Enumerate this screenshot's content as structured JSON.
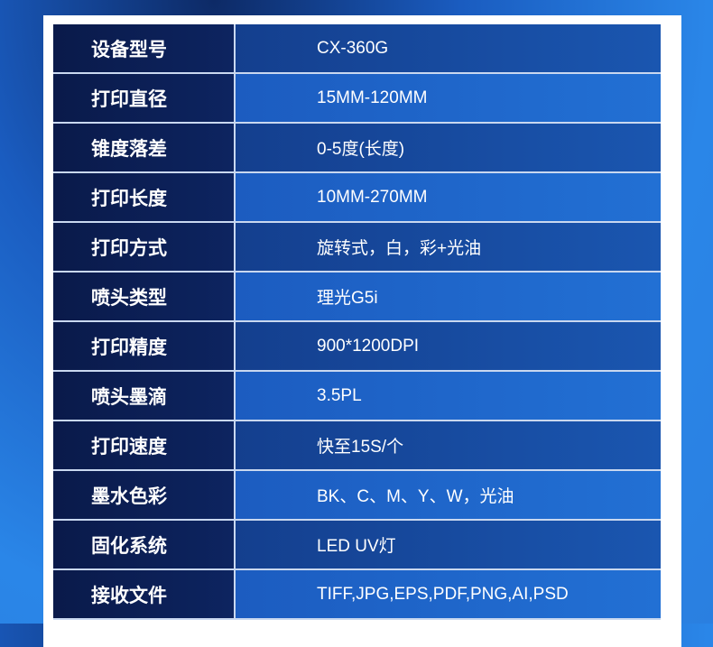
{
  "specs": [
    {
      "label": "设备型号",
      "value": "CX-360G"
    },
    {
      "label": "打印直径",
      "value": "15MM-120MM"
    },
    {
      "label": "锥度落差",
      "value": "0-5度(长度)"
    },
    {
      "label": "打印长度",
      "value": "10MM-270MM"
    },
    {
      "label": "打印方式",
      "value": "旋转式，白，彩+光油"
    },
    {
      "label": "喷头类型",
      "value": "理光G5i"
    },
    {
      "label": "打印精度",
      "value": "900*1200DPI"
    },
    {
      "label": "喷头墨滴",
      "value": "3.5PL"
    },
    {
      "label": "打印速度",
      "value": "快至15S/个"
    },
    {
      "label": "墨水色彩",
      "value": "BK、C、M、Y、W，光油"
    },
    {
      "label": "固化系统",
      "value": "LED UV灯"
    },
    {
      "label": "接收文件",
      "value": "TIFF,JPG,EPS,PDF,PNG,AI,PSD"
    }
  ]
}
